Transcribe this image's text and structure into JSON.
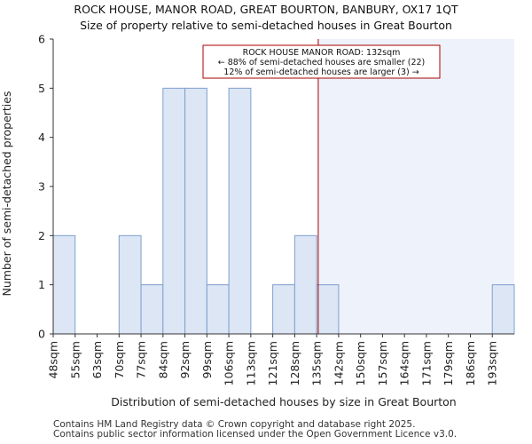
{
  "chart_data": {
    "type": "bar",
    "title": "ROCK HOUSE, MANOR ROAD, GREAT BOURTON, BANBURY, OX17 1QT",
    "subtitle": "Size of property relative to semi-detached houses in Great Bourton",
    "xlabel": "Distribution of semi-detached houses by size in Great Bourton",
    "ylabel": "Number of semi-detached properties",
    "categories": [
      "48sqm",
      "55sqm",
      "63sqm",
      "70sqm",
      "77sqm",
      "84sqm",
      "92sqm",
      "99sqm",
      "106sqm",
      "113sqm",
      "121sqm",
      "128sqm",
      "135sqm",
      "142sqm",
      "150sqm",
      "157sqm",
      "164sqm",
      "171sqm",
      "179sqm",
      "186sqm",
      "193sqm"
    ],
    "values": [
      2,
      0,
      0,
      2,
      1,
      5,
      5,
      1,
      5,
      0,
      1,
      2,
      1,
      0,
      0,
      0,
      0,
      0,
      0,
      0,
      1
    ],
    "ylim": [
      0,
      6
    ],
    "yticks": [
      0,
      1,
      2,
      3,
      4,
      5,
      6
    ],
    "grid": false,
    "marker": {
      "value": 132,
      "color": "#aa0000",
      "annotation": [
        "ROCK HOUSE MANOR ROAD: 132sqm",
        "← 88% of semi-detached houses are smaller (22)",
        "12% of semi-detached houses are larger (3) →"
      ]
    },
    "colors": {
      "bar_fill": "#dce6f5",
      "bar_stroke": "#7f9fcf",
      "highlight_region": "#eef2fb",
      "axis": "#333333"
    }
  },
  "footer": {
    "line1": "Contains HM Land Registry data © Crown copyright and database right 2025.",
    "line2": "Contains public sector information licensed under the Open Government Licence v3.0."
  }
}
